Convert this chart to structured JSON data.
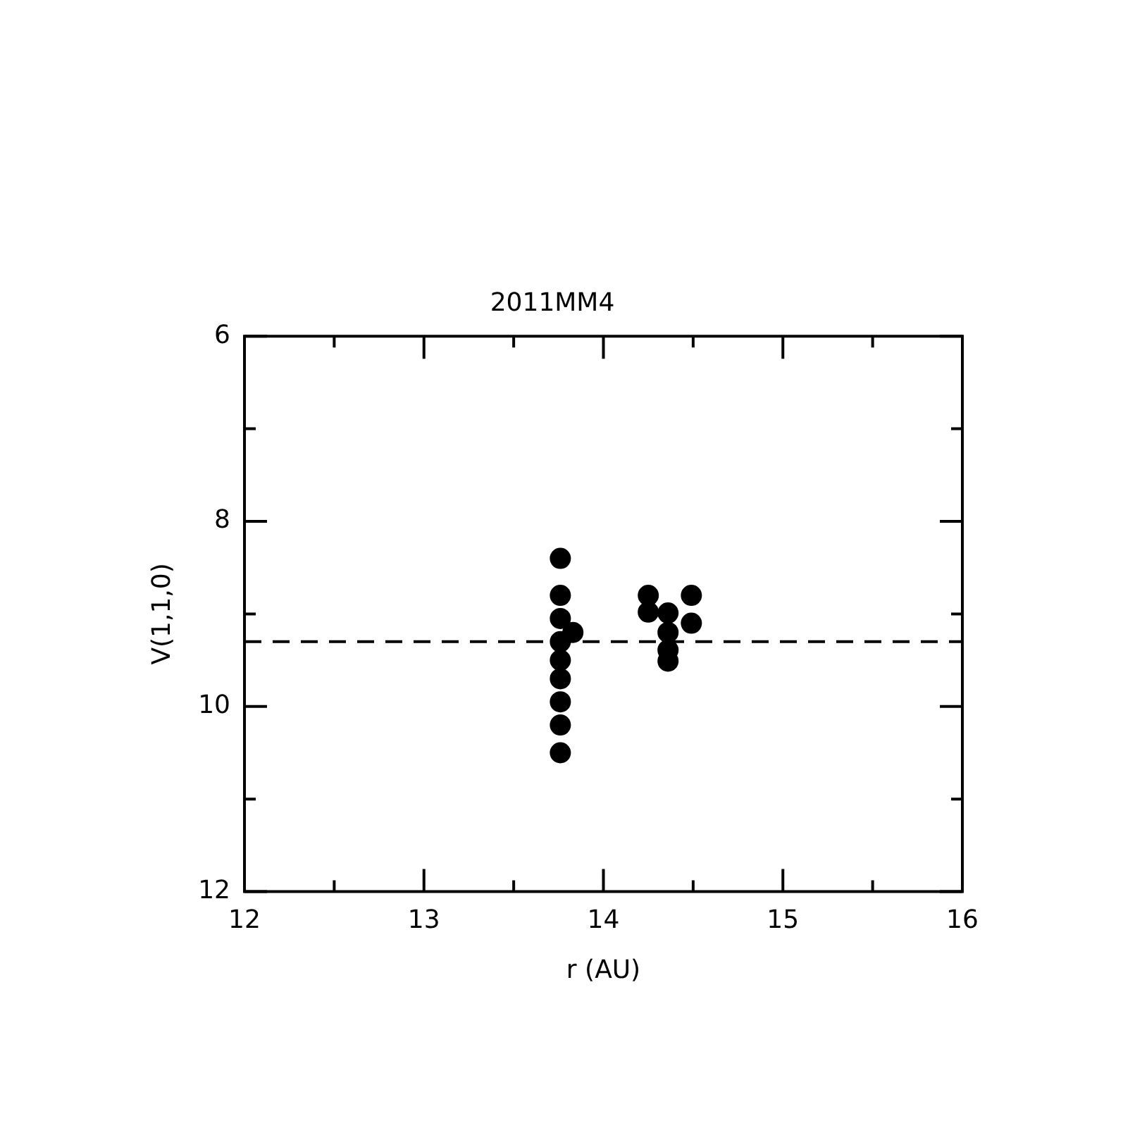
{
  "chart_data": {
    "type": "scatter",
    "title": "2011MM4",
    "xlabel": "r (AU)",
    "ylabel": "V(1,1,0)",
    "series": [
      {
        "color": "#000000",
        "x": [
          13.76,
          13.76,
          13.76,
          13.76,
          13.76,
          13.76,
          13.76,
          13.76,
          13.76,
          13.83,
          14.25,
          14.25,
          14.36,
          14.36,
          14.36,
          14.36,
          14.49,
          14.49
        ],
        "values": [
          8.4,
          8.8,
          9.05,
          9.3,
          9.5,
          9.7,
          9.95,
          10.2,
          10.5,
          9.2,
          8.8,
          8.98,
          8.99,
          9.2,
          9.39,
          9.51,
          8.8,
          9.1
        ]
      }
    ],
    "marker": "circle",
    "legend": false,
    "grid": false,
    "xlim": [
      12,
      16
    ],
    "xticks": [
      12,
      {
        "value": 12.5,
        "label": null
      },
      13,
      {
        "value": 13.5,
        "label": null
      },
      14,
      {
        "value": 14.5,
        "label": null
      },
      15,
      {
        "value": 15.5,
        "label": null
      },
      16
    ],
    "ylim": [
      12,
      6
    ],
    "yticks": [
      6,
      {
        "value": 7,
        "label": null
      },
      8,
      {
        "value": 9,
        "label": null
      },
      10,
      {
        "value": 11,
        "label": null
      },
      12
    ],
    "ref_lines": [
      {
        "axis": "y",
        "value": 9.3,
        "color": "#000000",
        "line_style": "dashed"
      }
    ]
  }
}
